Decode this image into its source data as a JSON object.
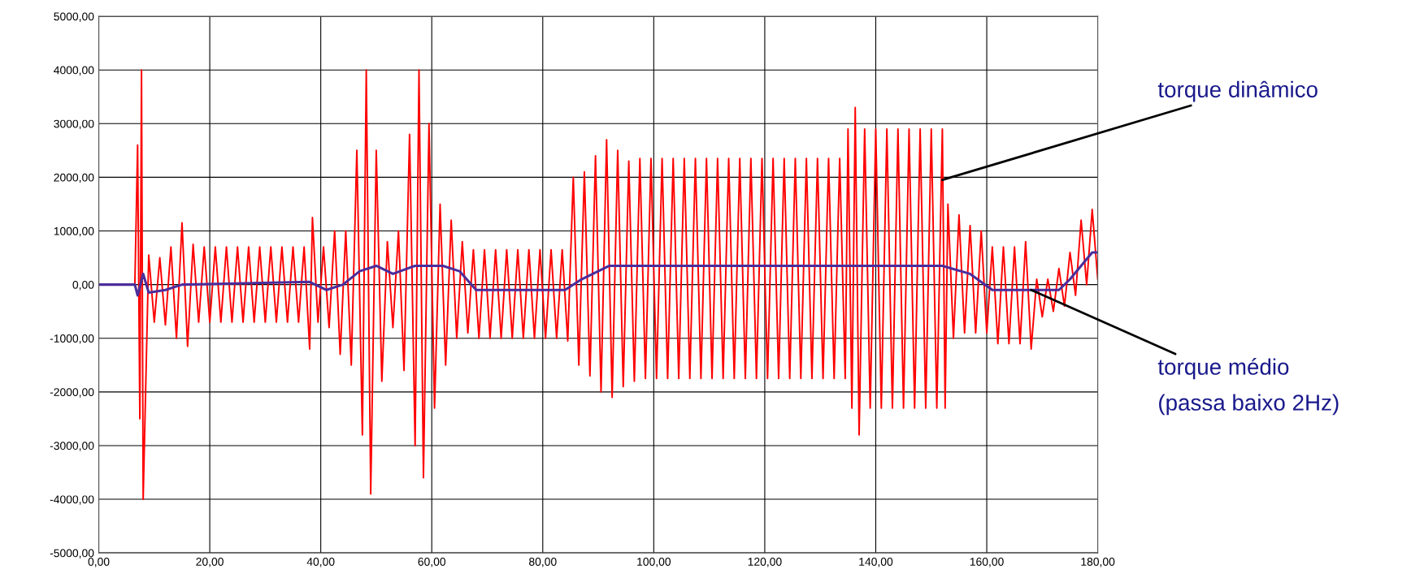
{
  "chart_data": {
    "type": "line",
    "grid": true,
    "xlim": [
      0,
      180
    ],
    "ylim": [
      -5000,
      5000
    ],
    "xticks": [
      {
        "value": 0,
        "label": "0,00"
      },
      {
        "value": 20,
        "label": "20,00"
      },
      {
        "value": 40,
        "label": "40,00"
      },
      {
        "value": 60,
        "label": "60,00"
      },
      {
        "value": 80,
        "label": "80,00"
      },
      {
        "value": 100,
        "label": "100,00"
      },
      {
        "value": 120,
        "label": "120,00"
      },
      {
        "value": 140,
        "label": "140,00"
      },
      {
        "value": 160,
        "label": "160,00"
      },
      {
        "value": 180,
        "label": "180,00"
      }
    ],
    "yticks": [
      {
        "value": -5000,
        "label": "-5000,00"
      },
      {
        "value": -4000,
        "label": "-4000,00"
      },
      {
        "value": -3000,
        "label": "-3000,00"
      },
      {
        "value": -2000,
        "label": "-2000,00"
      },
      {
        "value": -1000,
        "label": "-1000,00"
      },
      {
        "value": 0,
        "label": "0,00"
      },
      {
        "value": 1000,
        "label": "1000,00"
      },
      {
        "value": 2000,
        "label": "2000,00"
      },
      {
        "value": 3000,
        "label": "3000,00"
      },
      {
        "value": 4000,
        "label": "4000,00"
      },
      {
        "value": 5000,
        "label": "5000,00"
      }
    ],
    "line_style": "solid",
    "marker": "none",
    "series": [
      {
        "color": "#ff0000",
        "x": [
          0,
          6.5,
          7,
          7.4,
          7.7,
          8,
          9,
          10,
          11,
          12,
          13,
          14,
          15,
          16,
          17,
          18,
          19,
          20,
          21,
          22,
          23,
          24,
          25,
          26,
          27,
          28,
          29,
          30,
          31,
          32,
          33,
          34,
          35,
          36,
          37,
          38,
          38.5,
          39.5,
          40.5,
          41.5,
          42.5,
          43.5,
          44.5,
          45.5,
          46.5,
          47.5,
          48.2,
          49,
          50,
          51,
          52,
          53,
          54,
          55,
          56,
          57,
          57.7,
          58.5,
          59.5,
          60.5,
          61.5,
          62.5,
          63.5,
          64.5,
          65.5,
          66.5,
          67.5,
          68.5,
          69.5,
          70.5,
          71.5,
          72.5,
          73.5,
          74.5,
          75.5,
          76.5,
          77.5,
          78.5,
          79.5,
          80.5,
          81.5,
          82.5,
          83.5,
          84.5,
          85.5,
          86.5,
          87.5,
          88.5,
          89.5,
          90.5,
          91.5,
          92.5,
          93.5,
          94.5,
          95.5,
          96.5,
          97.5,
          98.5,
          99.5,
          100.5,
          101.5,
          102.5,
          103.5,
          104.5,
          105.5,
          106.5,
          107.5,
          108.5,
          109.5,
          110.5,
          111.5,
          112.5,
          113.5,
          114.5,
          115.5,
          116.5,
          117.5,
          118.5,
          119.5,
          120.5,
          121.5,
          122.5,
          123.5,
          124.5,
          125.5,
          126.5,
          127.5,
          128.5,
          129.5,
          130.5,
          131.5,
          132.5,
          133.5,
          134.5,
          135,
          135.7,
          136.3,
          137,
          138,
          139,
          140,
          141,
          142,
          143,
          144,
          145,
          146,
          147,
          148,
          149,
          150,
          151,
          152,
          152.5,
          153,
          154,
          155,
          156,
          157,
          158,
          159,
          160,
          161,
          162,
          163,
          164,
          165,
          166,
          167,
          168,
          169,
          170,
          171,
          172,
          173,
          174,
          175,
          176,
          177,
          178,
          179,
          180
        ],
        "values": [
          0,
          0,
          2600,
          -2500,
          4000,
          -4000,
          550,
          -700,
          500,
          -750,
          700,
          -1000,
          1150,
          -1150,
          750,
          -700,
          700,
          -700,
          700,
          -700,
          700,
          -700,
          700,
          -700,
          700,
          -700,
          700,
          -700,
          700,
          -700,
          700,
          -700,
          700,
          -700,
          700,
          -1200,
          1250,
          -700,
          700,
          -800,
          1000,
          -1300,
          1000,
          -1500,
          2500,
          -2800,
          4000,
          -3900,
          2500,
          -1800,
          800,
          -800,
          1000,
          -1600,
          2800,
          -3000,
          4000,
          -3600,
          3000,
          -2300,
          1500,
          -1500,
          1200,
          -1000,
          800,
          -900,
          650,
          -1000,
          650,
          -1000,
          650,
          -1000,
          650,
          -1000,
          650,
          -1000,
          650,
          -1000,
          650,
          -1000,
          650,
          -1000,
          650,
          -1050,
          2000,
          -1500,
          2100,
          -1700,
          2400,
          -2000,
          2700,
          -2100,
          2500,
          -1900,
          2300,
          -1800,
          2350,
          -1750,
          2350,
          -1750,
          2350,
          -1750,
          2350,
          -1750,
          2350,
          -1750,
          2350,
          -1750,
          2350,
          -1750,
          2350,
          -1750,
          2350,
          -1750,
          2350,
          -1750,
          2350,
          -1750,
          2350,
          -1750,
          2350,
          -1750,
          2350,
          -1750,
          2350,
          -1750,
          2350,
          -1750,
          2350,
          -1750,
          2350,
          -1750,
          2350,
          -1750,
          2900,
          -2300,
          3300,
          -2800,
          2900,
          -2300,
          2900,
          -2300,
          2900,
          -2300,
          2900,
          -2300,
          2900,
          -2300,
          2900,
          -2300,
          2900,
          -2300,
          2900,
          -2300,
          1500,
          -1000,
          1300,
          -900,
          1100,
          -900,
          1000,
          -900,
          700,
          -1100,
          700,
          -1100,
          700,
          -1100,
          800,
          -1200,
          100,
          -600,
          100,
          -500,
          300,
          -400,
          600,
          -200,
          1200,
          0,
          1400,
          100
        ]
      },
      {
        "color": "#4b2d9b",
        "x": [
          0,
          6.5,
          7,
          8,
          9,
          12,
          15,
          38,
          41,
          44,
          47,
          50,
          53,
          57,
          62,
          65,
          68,
          84,
          87,
          92,
          152,
          157,
          161,
          173,
          175,
          179,
          180
        ],
        "values": [
          0,
          0,
          -200,
          200,
          -150,
          -100,
          0,
          50,
          -100,
          0,
          250,
          350,
          200,
          350,
          350,
          250,
          -100,
          -100,
          100,
          350,
          350,
          200,
          -100,
          -100,
          100,
          600,
          600
        ]
      }
    ],
    "annotations": [
      {
        "text": "torque dinâmico",
        "x": 152,
        "y": 1950
      },
      {
        "text": "torque médio\n(passa baixo 2Hz)",
        "x": 168,
        "y": -100
      }
    ]
  }
}
